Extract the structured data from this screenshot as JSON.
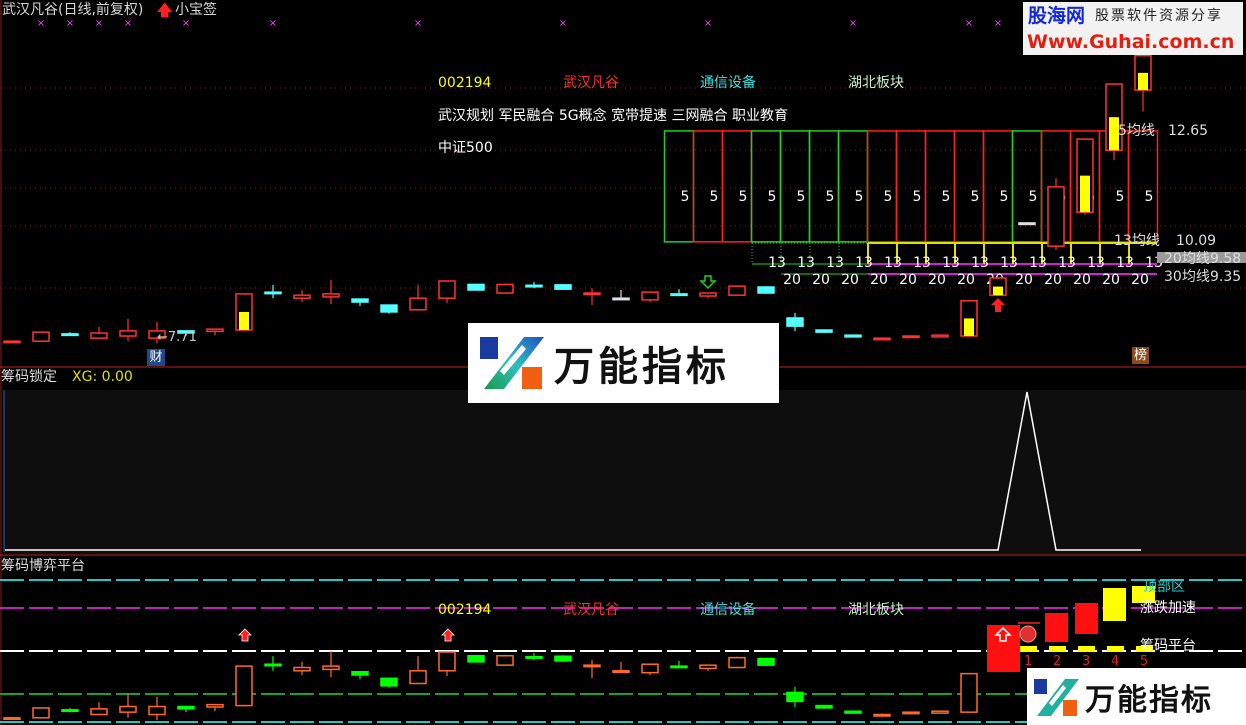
{
  "header": {
    "title": "武汉凡谷(日线,前复权)",
    "tag": "小宝签"
  },
  "colors": {
    "up": "#ff3232",
    "down": "#54ffff",
    "flat": "#e0e0e0",
    "highlight": "#ffff00",
    "bottom_up": "#ff6a28",
    "bottom_down": "#00ff00",
    "grid": "#8b1a1a"
  },
  "info": {
    "code": "002194",
    "name": "武汉凡谷",
    "industry": "通信设备",
    "region": "湖北板块",
    "concepts": "武汉规划 军民融合 5G概念 宽带提速 三网融合 职业教育",
    "index": "中证500"
  },
  "annotations": {
    "low_price": "←7.71",
    "cai_badge": "财",
    "bang_badge": "榜"
  },
  "ma_labels": [
    {
      "label": "5均线",
      "value": "12.65"
    },
    {
      "label": "13均线",
      "value": "10.09"
    },
    {
      "label": "20均线",
      "value": "9.58"
    },
    {
      "label": "30均线",
      "value": "9.35"
    }
  ],
  "candles": [
    {
      "o": 7.76,
      "c": 7.76,
      "h": 7.78,
      "l": 7.74,
      "t": "up"
    },
    {
      "o": 7.76,
      "c": 7.97,
      "h": 7.97,
      "l": 7.76,
      "t": "up"
    },
    {
      "o": 7.93,
      "c": 7.93,
      "h": 7.97,
      "l": 7.88,
      "t": "down"
    },
    {
      "o": 7.83,
      "c": 7.95,
      "h": 8.09,
      "l": 7.83,
      "t": "up"
    },
    {
      "o": 7.88,
      "c": 8.0,
      "h": 8.28,
      "l": 7.76,
      "t": "up"
    },
    {
      "o": 7.83,
      "c": 8.0,
      "h": 8.21,
      "l": 7.71,
      "t": "up"
    },
    {
      "o": 8.0,
      "c": 7.95,
      "h": 8.0,
      "l": 7.88,
      "t": "down"
    },
    {
      "o": 7.99,
      "c": 8.04,
      "h": 8.04,
      "l": 7.9,
      "t": "up"
    },
    {
      "o": 8.02,
      "c": 8.86,
      "h": 8.86,
      "l": 8.0,
      "t": "up",
      "hl": true
    },
    {
      "o": 8.9,
      "c": 8.9,
      "h": 9.07,
      "l": 8.76,
      "t": "down"
    },
    {
      "o": 8.76,
      "c": 8.83,
      "h": 8.95,
      "l": 8.67,
      "t": "up"
    },
    {
      "o": 8.79,
      "c": 8.86,
      "h": 9.18,
      "l": 8.62,
      "t": "up"
    },
    {
      "o": 8.74,
      "c": 8.67,
      "h": 8.74,
      "l": 8.58,
      "t": "down"
    },
    {
      "o": 8.6,
      "c": 8.44,
      "h": 8.6,
      "l": 8.4,
      "t": "down"
    },
    {
      "o": 8.49,
      "c": 8.76,
      "h": 9.07,
      "l": 8.49,
      "t": "up"
    },
    {
      "o": 8.76,
      "c": 9.16,
      "h": 9.16,
      "l": 8.65,
      "t": "up"
    },
    {
      "o": 9.08,
      "c": 8.95,
      "h": 9.08,
      "l": 8.95,
      "t": "down"
    },
    {
      "o": 8.88,
      "c": 9.08,
      "h": 9.1,
      "l": 8.88,
      "t": "up"
    },
    {
      "o": 9.06,
      "c": 9.04,
      "h": 9.14,
      "l": 8.99,
      "t": "down"
    },
    {
      "o": 9.07,
      "c": 8.97,
      "h": 9.09,
      "l": 8.95,
      "t": "down"
    },
    {
      "o": 8.88,
      "c": 8.88,
      "h": 8.99,
      "l": 8.6,
      "t": "up"
    },
    {
      "o": 8.76,
      "c": 8.76,
      "h": 8.95,
      "l": 8.76,
      "t": "flat"
    },
    {
      "o": 8.72,
      "c": 8.9,
      "h": 8.9,
      "l": 8.67,
      "t": "up"
    },
    {
      "o": 8.86,
      "c": 8.86,
      "h": 8.97,
      "l": 8.86,
      "t": "down"
    },
    {
      "o": 8.81,
      "c": 8.88,
      "h": 8.88,
      "l": 8.76,
      "t": "up"
    },
    {
      "o": 8.83,
      "c": 9.04,
      "h": 9.06,
      "l": 8.83,
      "t": "up"
    },
    {
      "o": 9.02,
      "c": 8.88,
      "h": 9.04,
      "l": 8.86,
      "t": "down"
    },
    {
      "o": 8.3,
      "c": 8.11,
      "h": 8.42,
      "l": 7.99,
      "t": "down"
    },
    {
      "o": 8.02,
      "c": 7.97,
      "h": 8.02,
      "l": 7.95,
      "t": "down"
    },
    {
      "o": 7.9,
      "c": 7.86,
      "h": 7.9,
      "l": 7.85,
      "t": "down"
    },
    {
      "o": 7.83,
      "c": 7.83,
      "h": 7.85,
      "l": 7.81,
      "t": "up"
    },
    {
      "o": 7.85,
      "c": 7.88,
      "h": 7.88,
      "l": 7.83,
      "t": "up"
    },
    {
      "o": 7.86,
      "c": 7.9,
      "h": 7.9,
      "l": 7.85,
      "t": "up"
    },
    {
      "o": 7.88,
      "c": 8.7,
      "h": 8.7,
      "l": 7.86,
      "t": "up",
      "hl": true
    },
    {
      "o": 8.83,
      "c": 9.23,
      "h": 9.23,
      "l": 8.81,
      "t": "up",
      "hl": true
    },
    {
      "o": 10.51,
      "c": 10.51,
      "h": 10.53,
      "l": 10.49,
      "t": "flat"
    },
    {
      "o": 9.97,
      "c": 11.35,
      "h": 11.55,
      "l": 9.88,
      "t": "up"
    },
    {
      "o": 10.76,
      "c": 12.46,
      "h": 12.46,
      "l": 10.7,
      "t": "up",
      "hl": true
    },
    {
      "o": 12.2,
      "c": 13.74,
      "h": 13.74,
      "l": 11.97,
      "t": "up",
      "hl": true
    },
    {
      "o": 13.6,
      "c": 14.4,
      "h": 14.4,
      "l": 13.1,
      "t": "up",
      "hl": true
    }
  ],
  "top_markers": [
    1,
    2,
    3,
    4,
    6,
    9,
    14,
    19,
    24,
    29,
    33,
    34
  ],
  "down_arrow_at": 24,
  "up_arrow_at": 34,
  "ma_boxes": {
    "label": "5",
    "first_index": 23,
    "colors": [
      "green",
      "red",
      "red",
      "green",
      "green",
      "green",
      "green",
      "red",
      "red",
      "red",
      "red",
      "red",
      "green",
      "red",
      "red",
      "red",
      "red"
    ],
    "label13": "13",
    "label20": "20"
  },
  "panel2": {
    "title": "筹码锁定",
    "xg_label": "XG: 0.00",
    "xg": {
      "peak_index": 35
    }
  },
  "panel3": {
    "title": "筹码博弈平台",
    "zones": {
      "top": "顶部区",
      "accel": "涨跌加速",
      "platform": "筹码平台"
    },
    "up_arrows_at": [
      8,
      15
    ],
    "steps": [
      "1",
      "2",
      "3",
      "4",
      "5"
    ]
  },
  "watermarks": {
    "wanneng": "万能指标",
    "guhai_name": "股海网",
    "guhai_slogan": "股票软件资源分享",
    "guhai_url": "Www.Guhai.com.cn"
  }
}
